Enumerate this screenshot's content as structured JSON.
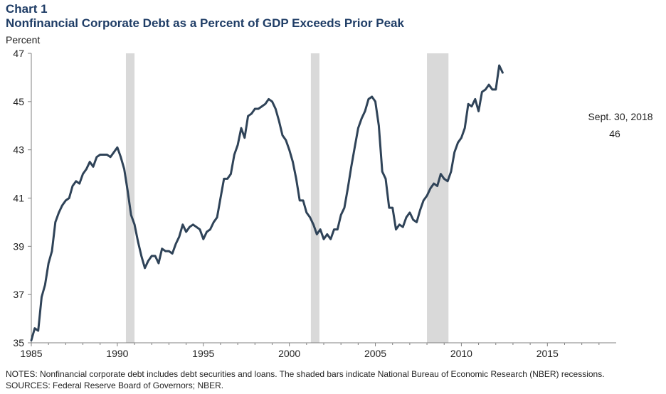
{
  "header": {
    "chart_label": "Chart 1",
    "title": "Nonfinancial Corporate Debt as a Percent of GDP Exceeds Prior Peak",
    "y_unit": "Percent"
  },
  "footer": {
    "notes": "NOTES: Nonfinancial corporate debt includes debt securities and loans. The shaded bars indicate National Bureau of Economic Research (NBER) recessions.",
    "sources": "SOURCES: Federal Reserve Board of Governors; NBER."
  },
  "colors": {
    "line": "#2f4358",
    "recession": "#d9d9d9",
    "title": "#1f3d66"
  },
  "chart_data": {
    "type": "line",
    "title": "Nonfinancial Corporate Debt as a Percent of GDP Exceeds Prior Peak",
    "ylabel": "Percent",
    "xlim": [
      1985,
      2019
    ],
    "ylim": [
      35,
      47
    ],
    "x_ticks": [
      1985,
      1990,
      1995,
      2000,
      2005,
      2010,
      2015
    ],
    "y_ticks": [
      35,
      37,
      39,
      41,
      43,
      45,
      47
    ],
    "grid": false,
    "recessions": [
      {
        "start": 1990.5,
        "end": 1991.0
      },
      {
        "start": 2001.25,
        "end": 2001.75
      },
      {
        "start": 2008.0,
        "end": 2009.25
      }
    ],
    "annotation": {
      "label": "Sept. 30, 2018",
      "value": "46"
    },
    "series": [
      {
        "values": [
          [
            1985.0,
            35.1
          ],
          [
            1985.2,
            35.6
          ],
          [
            1985.4,
            35.5
          ],
          [
            1985.6,
            36.9
          ],
          [
            1985.8,
            37.4
          ],
          [
            1986.0,
            38.3
          ],
          [
            1986.2,
            38.8
          ],
          [
            1986.4,
            40.0
          ],
          [
            1986.6,
            40.4
          ],
          [
            1986.8,
            40.7
          ],
          [
            1987.0,
            40.9
          ],
          [
            1987.2,
            41.0
          ],
          [
            1987.4,
            41.5
          ],
          [
            1987.6,
            41.7
          ],
          [
            1987.8,
            41.6
          ],
          [
            1988.0,
            42.0
          ],
          [
            1988.2,
            42.2
          ],
          [
            1988.4,
            42.5
          ],
          [
            1988.6,
            42.3
          ],
          [
            1988.8,
            42.7
          ],
          [
            1989.0,
            42.8
          ],
          [
            1989.2,
            42.8
          ],
          [
            1989.4,
            42.8
          ],
          [
            1989.6,
            42.7
          ],
          [
            1989.8,
            42.9
          ],
          [
            1990.0,
            43.1
          ],
          [
            1990.2,
            42.7
          ],
          [
            1990.4,
            42.2
          ],
          [
            1990.6,
            41.3
          ],
          [
            1990.8,
            40.3
          ],
          [
            1991.0,
            39.9
          ],
          [
            1991.2,
            39.2
          ],
          [
            1991.4,
            38.6
          ],
          [
            1991.6,
            38.1
          ],
          [
            1991.8,
            38.4
          ],
          [
            1992.0,
            38.6
          ],
          [
            1992.2,
            38.6
          ],
          [
            1992.4,
            38.3
          ],
          [
            1992.6,
            38.9
          ],
          [
            1992.8,
            38.8
          ],
          [
            1993.0,
            38.8
          ],
          [
            1993.2,
            38.7
          ],
          [
            1993.4,
            39.1
          ],
          [
            1993.6,
            39.4
          ],
          [
            1993.8,
            39.9
          ],
          [
            1994.0,
            39.6
          ],
          [
            1994.2,
            39.8
          ],
          [
            1994.4,
            39.9
          ],
          [
            1994.6,
            39.8
          ],
          [
            1994.8,
            39.7
          ],
          [
            1995.0,
            39.3
          ],
          [
            1995.2,
            39.6
          ],
          [
            1995.4,
            39.7
          ],
          [
            1995.6,
            40.0
          ],
          [
            1995.8,
            40.2
          ],
          [
            1996.0,
            41.0
          ],
          [
            1996.2,
            41.8
          ],
          [
            1996.4,
            41.8
          ],
          [
            1996.6,
            42.0
          ],
          [
            1996.8,
            42.8
          ],
          [
            1997.0,
            43.2
          ],
          [
            1997.2,
            43.9
          ],
          [
            1997.4,
            43.5
          ],
          [
            1997.6,
            44.4
          ],
          [
            1997.8,
            44.5
          ],
          [
            1998.0,
            44.7
          ],
          [
            1998.2,
            44.7
          ],
          [
            1998.4,
            44.8
          ],
          [
            1998.6,
            44.9
          ],
          [
            1998.8,
            45.1
          ],
          [
            1999.0,
            45.0
          ],
          [
            1999.2,
            44.7
          ],
          [
            1999.4,
            44.2
          ],
          [
            1999.6,
            43.6
          ],
          [
            1999.8,
            43.4
          ],
          [
            2000.0,
            43.0
          ],
          [
            2000.2,
            42.5
          ],
          [
            2000.4,
            41.8
          ],
          [
            2000.6,
            40.9
          ],
          [
            2000.8,
            40.9
          ],
          [
            2001.0,
            40.4
          ],
          [
            2001.2,
            40.2
          ],
          [
            2001.4,
            39.9
          ],
          [
            2001.6,
            39.5
          ],
          [
            2001.8,
            39.7
          ],
          [
            2002.0,
            39.3
          ],
          [
            2002.2,
            39.5
          ],
          [
            2002.4,
            39.3
          ],
          [
            2002.6,
            39.7
          ],
          [
            2002.8,
            39.7
          ],
          [
            2003.0,
            40.3
          ],
          [
            2003.2,
            40.6
          ],
          [
            2003.4,
            41.4
          ],
          [
            2003.6,
            42.3
          ],
          [
            2003.8,
            43.1
          ],
          [
            2004.0,
            43.9
          ],
          [
            2004.2,
            44.3
          ],
          [
            2004.4,
            44.6
          ],
          [
            2004.6,
            45.1
          ],
          [
            2004.8,
            45.2
          ],
          [
            2005.0,
            45.0
          ],
          [
            2005.2,
            44.0
          ],
          [
            2005.4,
            42.1
          ],
          [
            2005.6,
            41.8
          ],
          [
            2005.8,
            40.6
          ],
          [
            2006.0,
            40.6
          ],
          [
            2006.2,
            39.7
          ],
          [
            2006.4,
            39.9
          ],
          [
            2006.6,
            39.8
          ],
          [
            2006.8,
            40.2
          ],
          [
            2007.0,
            40.4
          ],
          [
            2007.2,
            40.1
          ],
          [
            2007.4,
            40.0
          ],
          [
            2007.6,
            40.5
          ],
          [
            2007.8,
            40.9
          ],
          [
            2008.0,
            41.1
          ],
          [
            2008.2,
            41.4
          ],
          [
            2008.4,
            41.6
          ],
          [
            2008.6,
            41.5
          ],
          [
            2008.8,
            42.0
          ],
          [
            2009.0,
            41.8
          ],
          [
            2009.2,
            41.7
          ],
          [
            2009.4,
            42.1
          ],
          [
            2009.6,
            42.9
          ],
          [
            2009.8,
            43.3
          ],
          [
            2010.0,
            43.5
          ],
          [
            2010.2,
            43.9
          ],
          [
            2010.4,
            44.9
          ],
          [
            2010.6,
            44.8
          ],
          [
            2010.8,
            45.1
          ],
          [
            2011.0,
            44.6
          ],
          [
            2011.2,
            45.4
          ],
          [
            2011.4,
            45.5
          ],
          [
            2011.6,
            45.7
          ],
          [
            2011.8,
            45.5
          ],
          [
            2012.0,
            45.5
          ],
          [
            2012.2,
            46.5
          ],
          [
            2012.4,
            46.2
          ]
        ]
      }
    ]
  }
}
